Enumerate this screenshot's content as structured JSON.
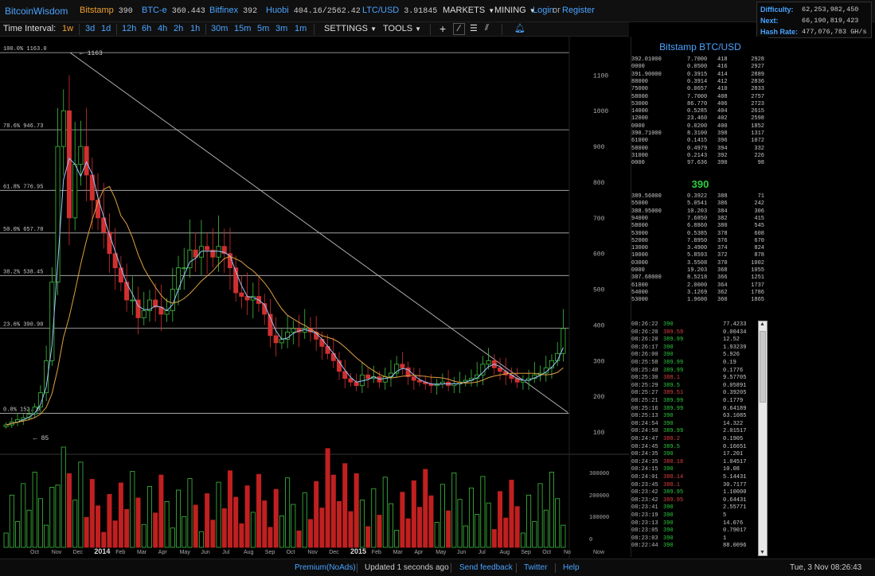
{
  "header": {
    "logo": "BitcoinWisdom",
    "tickers": [
      {
        "name": "Bitstamp",
        "value": "390",
        "color": "orange"
      },
      {
        "name": "BTC-e",
        "value": "360.443",
        "color": "blue"
      },
      {
        "name": "Bitfinex",
        "value": "392",
        "color": "blue"
      },
      {
        "name": "Huobi",
        "value": "404.16/2562.42",
        "color": "blue"
      },
      {
        "name": "LTC/USD",
        "value": "3.91845",
        "color": "blue"
      }
    ],
    "markets": "MARKETS",
    "mining": "MINING",
    "login": "Login",
    "or": "or",
    "register": "Register"
  },
  "stats": {
    "difficulty_label": "Difficulty:",
    "difficulty": "62,253,982,450",
    "next_label": "Next:",
    "next": "66,190,819,423",
    "hashrate_label": "Hash Rate:",
    "hashrate": "477,076,783 GH/s"
  },
  "toolbar": {
    "time_interval": "Time Interval:",
    "intervals": [
      "1w",
      "3d",
      "1d",
      "12h",
      "6h",
      "4h",
      "2h",
      "1h",
      "30m",
      "15m",
      "5m",
      "3m",
      "1m"
    ],
    "selected": "1w",
    "settings": "SETTINGS",
    "tools": "TOOLS"
  },
  "chart": {
    "fib": [
      {
        "label": "100.0% 1163.0",
        "price": 1163
      },
      {
        "label": "78.6% 946.73",
        "price": 946.73
      },
      {
        "label": "61.8% 776.95",
        "price": 776.95
      },
      {
        "label": "50.0% 657.70",
        "price": 657.7
      },
      {
        "label": "38.2% 538.45",
        "price": 538.45
      },
      {
        "label": "23.6% 390.90",
        "price": 390.9
      },
      {
        "label": "0.0% 152.40",
        "price": 152.4
      }
    ],
    "high_label": "1163",
    "low_label": "85",
    "yticks": [
      "1100",
      "1000",
      "900",
      "800",
      "700",
      "600",
      "500",
      "400",
      "300",
      "200",
      "100"
    ],
    "vol_ticks": [
      "300000",
      "200000",
      "100000",
      "0"
    ],
    "xticks": [
      "Oct",
      "Nov",
      "Dec",
      "2014",
      "Feb",
      "Mar",
      "Apr",
      "May",
      "Jun",
      "Jul",
      "Aug",
      "Sep",
      "Oct",
      "Nov",
      "Dec",
      "2015",
      "Feb",
      "Mar",
      "Apr",
      "May",
      "Jun",
      "Jul",
      "Aug",
      "Sep",
      "Oct",
      "No",
      "Now"
    ],
    "closes": [
      120,
      128,
      135,
      140,
      150,
      170,
      210,
      300,
      520,
      900,
      1000,
      700,
      850,
      900,
      820,
      750,
      700,
      660,
      600,
      560,
      520,
      470,
      470,
      420,
      440,
      470,
      450,
      430,
      440,
      500,
      560,
      560,
      610,
      590,
      620,
      610,
      590,
      620,
      600,
      560,
      490,
      480,
      470,
      480,
      460,
      430,
      370,
      350,
      360,
      380,
      390,
      380,
      390,
      380,
      360,
      340,
      320,
      300,
      270,
      250,
      240,
      230,
      260,
      250,
      255,
      240,
      255,
      265,
      290,
      280,
      255,
      245,
      240,
      235,
      230,
      235,
      240,
      230,
      235,
      240,
      245,
      250,
      260,
      290,
      300,
      280,
      270,
      260,
      250,
      240,
      245,
      250,
      260,
      265,
      280,
      300,
      320,
      390
    ]
  },
  "orderbook": {
    "title": "Bitstamp BTC/USD",
    "last": "390",
    "asks": [
      [
        "392.01000",
        "7.7000",
        "418",
        "2928"
      ],
      [
        "0000",
        "0.0500",
        "416",
        "2927"
      ],
      [
        "391.90000",
        "0.3915",
        "414",
        "2889"
      ],
      [
        "88000",
        "0.3914",
        "412",
        "2836"
      ],
      [
        "75000",
        "0.0657",
        "410",
        "2833"
      ],
      [
        "58000",
        "7.7000",
        "408",
        "2757"
      ],
      [
        "53000",
        "86.770",
        "406",
        "2723"
      ],
      [
        "14000",
        "0.5285",
        "404",
        "2615"
      ],
      [
        "12000",
        "23.460",
        "402",
        "2598"
      ],
      [
        "0000",
        "0.0200",
        "400",
        "1852"
      ],
      [
        "390.71000",
        "8.3100",
        "398",
        "1317"
      ],
      [
        "61000",
        "0.1415",
        "396",
        "1072"
      ],
      [
        "58000",
        "0.4979",
        "394",
        "332"
      ],
      [
        "31000",
        "0.2143",
        "392",
        "226"
      ],
      [
        "0000",
        "97.636",
        "390",
        "98"
      ]
    ],
    "bids": [
      [
        "389.56000",
        "0.3922",
        "388",
        "71"
      ],
      [
        "55000",
        "5.0541",
        "386",
        "242"
      ],
      [
        "388.95000",
        "10.203",
        "384",
        "306"
      ],
      [
        "94000",
        "7.6850",
        "382",
        "415"
      ],
      [
        "58000",
        "6.8860",
        "380",
        "545"
      ],
      [
        "53000",
        "0.5385",
        "378",
        "608"
      ],
      [
        "52000",
        "7.8950",
        "376",
        "670"
      ],
      [
        "13000",
        "3.4900",
        "374",
        "824"
      ],
      [
        "10000",
        "5.8593",
        "372",
        "878"
      ],
      [
        "03000",
        "3.5508",
        "370",
        "1002"
      ],
      [
        "0000",
        "19.203",
        "368",
        "1055"
      ],
      [
        "387.68000",
        "8.5218",
        "366",
        "1251"
      ],
      [
        "61000",
        "2.0000",
        "364",
        "1737"
      ],
      [
        "54000",
        "3.1269",
        "362",
        "1786"
      ],
      [
        "53000",
        "1.9600",
        "360",
        "1865"
      ]
    ]
  },
  "trades": [
    [
      "08:26:22",
      "390",
      "77.4233",
      "g"
    ],
    [
      "08:26:20",
      "389.59",
      "0.00434",
      "r"
    ],
    [
      "08:26:20",
      "389.99",
      "12.52",
      "g"
    ],
    [
      "08:26:17",
      "390",
      "1.93239",
      "g"
    ],
    [
      "08:26:00",
      "390",
      "5.926",
      "g"
    ],
    [
      "08:25:58",
      "389.99",
      "0.19",
      "g"
    ],
    [
      "08:25:48",
      "389.99",
      "0.1776",
      "g"
    ],
    [
      "08:25:30",
      "388.1",
      "9.57705",
      "r"
    ],
    [
      "08:25:29",
      "389.5",
      "0.05891",
      "g"
    ],
    [
      "08:25:27",
      "389.51",
      "0.39205",
      "r"
    ],
    [
      "08:25:21",
      "389.99",
      "0.1779",
      "g"
    ],
    [
      "08:25:16",
      "389.99",
      "0.64189",
      "g"
    ],
    [
      "08:25:13",
      "390",
      "63.1085",
      "g"
    ],
    [
      "08:24:54",
      "390",
      "14.322",
      "g"
    ],
    [
      "08:24:50",
      "389.99",
      "2.01517",
      "g"
    ],
    [
      "08:24:47",
      "388.2",
      "0.1905",
      "r"
    ],
    [
      "08:24:45",
      "389.5",
      "0.16651",
      "g"
    ],
    [
      "08:24:35",
      "390",
      "17.201",
      "g"
    ],
    [
      "08:24:35",
      "388.18",
      "1.04517",
      "r"
    ],
    [
      "08:24:15",
      "390",
      "10.08",
      "g"
    ],
    [
      "08:24:01",
      "388.14",
      "5.14431",
      "r"
    ],
    [
      "08:23:45",
      "388.1",
      "30.7177",
      "r"
    ],
    [
      "08:23:42",
      "389.95",
      "1.10000",
      "g"
    ],
    [
      "08:23:42",
      "389.95",
      "0.64431",
      "r"
    ],
    [
      "08:23:41",
      "390",
      "2.55771",
      "g"
    ],
    [
      "08:23:19",
      "390",
      "5",
      "g"
    ],
    [
      "08:23:13",
      "390",
      "14.076",
      "g"
    ],
    [
      "08:23:05",
      "390",
      "0.79017",
      "g"
    ],
    [
      "08:23:03",
      "390",
      "1",
      "g"
    ],
    [
      "08:22:44",
      "390",
      "88.0096",
      "g"
    ]
  ],
  "footer": {
    "premium": "Premium(NoAds)",
    "updated": "Updated 1 seconds ago",
    "feedback": "Send feedback",
    "twitter": "Twitter",
    "help": "Help",
    "datetime": "Tue, 3 Nov 08:26:43"
  }
}
